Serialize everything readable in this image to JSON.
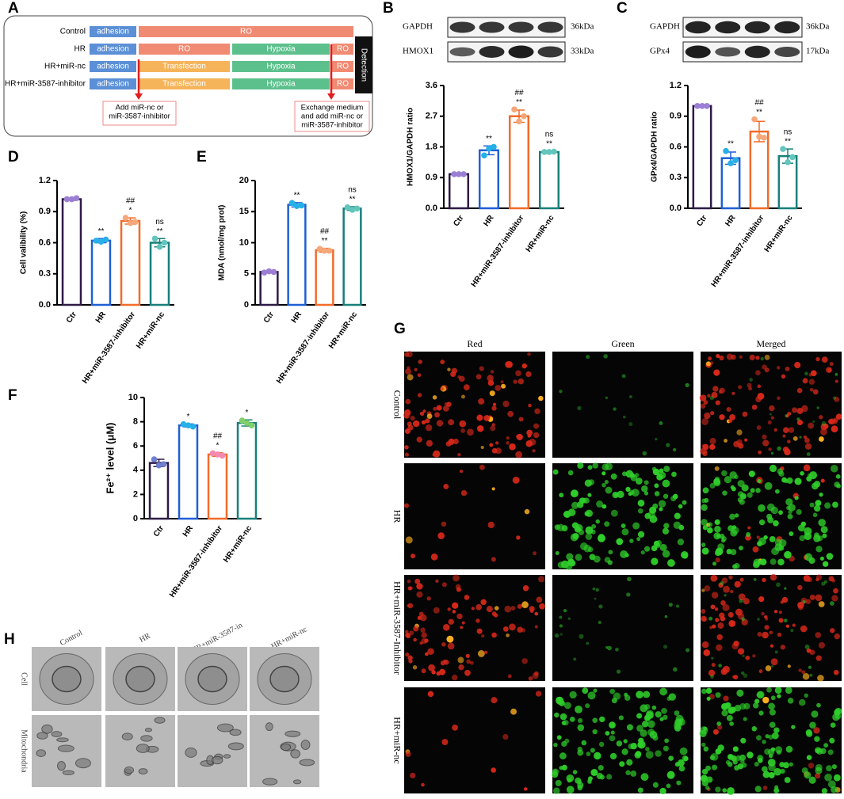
{
  "panel_a": {
    "label": "A",
    "rows": [
      {
        "name": "Control",
        "segments": [
          "adhesion",
          "RO"
        ]
      },
      {
        "name": "HR",
        "segments": [
          "adhesion",
          "RO",
          "Hypoxia",
          "RO"
        ]
      },
      {
        "name": "HR+miR-nc",
        "segments": [
          "adhesion",
          "Transfection",
          "Hypoxia",
          "RO"
        ]
      },
      {
        "name": "HR+miR-3587-inhibitor",
        "segments": [
          "adhesion",
          "Transfection",
          "Hypoxia",
          "RO"
        ]
      }
    ],
    "detection": "Detection",
    "notes": [
      [
        "Add miR-nc or",
        "miR-3587-inhibitor"
      ],
      [
        "Exchange medium",
        "and add miR-nc or",
        "miR-3587-inhibitor"
      ]
    ]
  },
  "blots": [
    {
      "panel": "B",
      "bands": [
        {
          "name": "GAPDH",
          "size": "36kDa"
        },
        {
          "name": "HMOX1",
          "size": "33kDa"
        }
      ]
    },
    {
      "panel": "C",
      "bands": [
        {
          "name": "GAPDH",
          "size": "36kDa"
        },
        {
          "name": "GPx4",
          "size": "17kDa"
        }
      ]
    }
  ],
  "chart_data": [
    {
      "type": "bar",
      "ylabel": "HMOX1/GAPDH ratio",
      "categories": [
        "Ctr",
        "HR",
        "HR+miR-3587-inhibitor",
        "HR+miR-nc"
      ],
      "values": [
        1.0,
        1.7,
        2.7,
        1.65
      ],
      "errors": [
        0.01,
        0.13,
        0.18,
        0.02
      ],
      "points": [
        [
          1,
          1,
          1
        ],
        [
          1.55,
          1.75,
          1.8
        ],
        [
          2.9,
          2.55,
          2.7
        ],
        [
          1.65,
          1.65,
          1.66
        ]
      ],
      "significance": [
        [],
        [
          "**"
        ],
        [
          "##",
          "**"
        ],
        [
          "ns",
          "**"
        ]
      ],
      "colors": [
        "#2e1a47",
        "#1f5fd6",
        "#f26b2a",
        "#17807a"
      ],
      "point_colors": [
        "#9b7fd4",
        "#26b0e8",
        "#f5a77a",
        "#62c6bd"
      ],
      "ylim": [
        0,
        3.6
      ],
      "yticks": [
        {
          "value": 0,
          "label": "0.0"
        },
        0.9,
        1.8,
        2.7,
        3.6
      ]
    },
    {
      "type": "bar",
      "ylabel": "GPx4/GAPDH  ratio",
      "categories": [
        "Ctr",
        "HR",
        "HR+miR-3587-inhibitor",
        "HR+miR-nc"
      ],
      "values": [
        1.0,
        0.49,
        0.75,
        0.51
      ],
      "errors": [
        0.005,
        0.06,
        0.1,
        0.07
      ],
      "points": [
        [
          1,
          1,
          1
        ],
        [
          0.56,
          0.44,
          0.47
        ],
        [
          0.87,
          0.7,
          0.69
        ],
        [
          0.58,
          0.45,
          0.5
        ]
      ],
      "significance": [
        [],
        [
          "**"
        ],
        [
          "##",
          "**"
        ],
        [
          "ns",
          "**"
        ]
      ],
      "colors": [
        "#2e1a47",
        "#1f5fd6",
        "#f26b2a",
        "#17807a"
      ],
      "point_colors": [
        "#9b7fd4",
        "#26b0e8",
        "#f5a77a",
        "#62c6bd"
      ],
      "ylim": [
        0,
        1.2
      ],
      "yticks": [
        {
          "value": 0,
          "label": "0.0"
        },
        0.3,
        0.6,
        0.9,
        1.2
      ]
    },
    {
      "type": "bar",
      "panel": "D",
      "ylabel": "Cell valibility (%)",
      "categories": [
        "Ctr",
        "HR",
        "HR+miR-3587-inhibitor",
        "HR+miR-nc"
      ],
      "values": [
        1.02,
        0.62,
        0.81,
        0.6
      ],
      "errors": [
        0.01,
        0.02,
        0.03,
        0.04
      ],
      "points": [
        [
          1.02,
          1.02,
          1.03
        ],
        [
          0.62,
          0.61,
          0.63
        ],
        [
          0.84,
          0.79,
          0.8
        ],
        [
          0.64,
          0.56,
          0.6
        ]
      ],
      "significance": [
        [],
        [
          "**"
        ],
        [
          "##",
          "*"
        ],
        [
          "ns",
          "**"
        ]
      ],
      "colors": [
        "#2e1a47",
        "#1f5fd6",
        "#f26b2a",
        "#17807a"
      ],
      "point_colors": [
        "#9b7fd4",
        "#26b0e8",
        "#f5a77a",
        "#62c6bd"
      ],
      "ylim": [
        0,
        1.2
      ],
      "yticks": [
        {
          "value": 0,
          "label": "0.0"
        },
        0.3,
        0.6,
        0.9,
        1.2
      ]
    },
    {
      "type": "bar",
      "panel": "E",
      "ylabel": "MDA (nmol/mg prot)",
      "categories": [
        "Ctr",
        "HR",
        "HR+miR-3587-inhibitor",
        "HR+miR-nc"
      ],
      "values": [
        5.3,
        16.1,
        8.8,
        15.5
      ],
      "errors": [
        0.15,
        0.35,
        0.3,
        0.3
      ],
      "points": [
        [
          5.2,
          5.4,
          5.3
        ],
        [
          16.4,
          15.9,
          16
        ],
        [
          9,
          8.7,
          8.7
        ],
        [
          15.7,
          15.3,
          15.5
        ]
      ],
      "significance": [
        [],
        [
          "**"
        ],
        [
          "##",
          "**"
        ],
        [
          "ns",
          "**"
        ]
      ],
      "colors": [
        "#2e1a47",
        "#1f5fd6",
        "#f26b2a",
        "#17807a"
      ],
      "point_colors": [
        "#9b7fd4",
        "#26b0e8",
        "#f5a77a",
        "#62c6bd"
      ],
      "ylim": [
        0,
        20
      ],
      "yticks": [
        0,
        5,
        10,
        15,
        20
      ]
    },
    {
      "type": "bar",
      "panel": "F",
      "ylabel": "Fe²⁺ level (μM)",
      "categories": [
        "Ctr",
        "HR",
        "HR+miR-3587-inhibitor",
        "HR+miR-nc"
      ],
      "values": [
        4.6,
        7.7,
        5.3,
        7.9
      ],
      "errors": [
        0.3,
        0.12,
        0.15,
        0.25
      ],
      "points": [
        [
          4.9,
          4.4,
          4.5
        ],
        [
          7.8,
          7.7,
          7.6
        ],
        [
          5.4,
          5.3,
          5.2
        ],
        [
          8.1,
          7.9,
          7.7
        ]
      ],
      "significance": [
        [],
        [
          "*"
        ],
        [
          "##",
          "*"
        ],
        [
          "*"
        ]
      ],
      "colors": [
        "#2e1a47",
        "#1f5fd6",
        "#f26b2a",
        "#17807a"
      ],
      "point_colors": [
        "#6f7fd0",
        "#26b0e8",
        "#f58ab0",
        "#7fcf6a"
      ],
      "ylim": [
        0,
        10
      ],
      "yticks": [
        0,
        2,
        4,
        6,
        8,
        10
      ]
    }
  ],
  "panel_g": {
    "label": "G",
    "columns": [
      "Red",
      "Green",
      "Merged"
    ],
    "rows": [
      "Control",
      "HR",
      "HR+miR-3587-Inhibitor",
      "HR+miR-nc"
    ]
  },
  "panel_h": {
    "label": "H",
    "columns": [
      "Control",
      "HR",
      "HR+miR-3587-in",
      "HR+miR-nc"
    ],
    "rows": [
      "Cell",
      "Mitochondria"
    ]
  }
}
